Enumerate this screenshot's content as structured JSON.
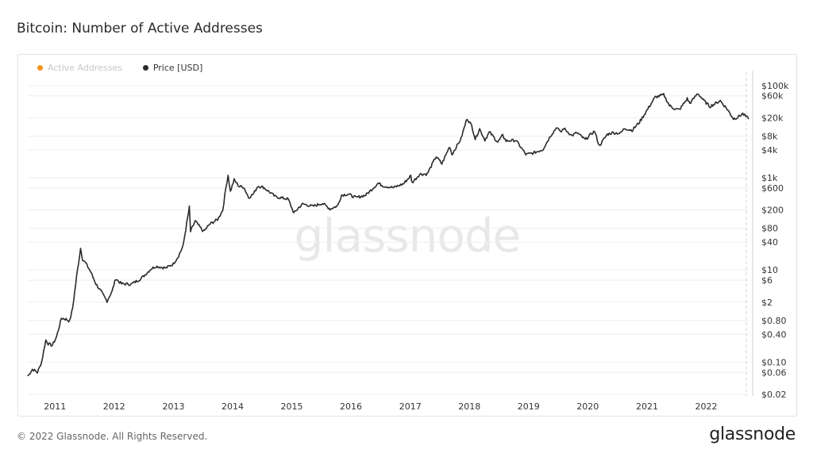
{
  "title": "Bitcoin: Number of Active Addresses",
  "footer": {
    "copyright": "© 2022 Glassnode. All Rights Reserved.",
    "logo": "glassnode"
  },
  "watermark": "glassnode",
  "colors": {
    "price_line": "#2a2a2a",
    "active_addresses": "#f7931a",
    "grid": "#eeeeee"
  },
  "legend": [
    {
      "label": "Active Addresses",
      "color": "#f7931a",
      "state": "inactive"
    },
    {
      "label": "Price [USD]",
      "color": "#2a2a2a",
      "state": "active"
    }
  ],
  "chart_data": {
    "type": "line",
    "title": "Bitcoin: Number of Active Addresses",
    "y_scale": "log",
    "ylim": [
      0.02,
      180000
    ],
    "xlim": [
      "2010-07-17",
      "2022-09-20"
    ],
    "x_ticks": [
      "2011",
      "2012",
      "2013",
      "2014",
      "2015",
      "2016",
      "2017",
      "2018",
      "2019",
      "2020",
      "2021",
      "2022"
    ],
    "y_ticks": [
      {
        "value": 100000,
        "label": "$100k"
      },
      {
        "value": 60000,
        "label": "$60k"
      },
      {
        "value": 20000,
        "label": "$20k"
      },
      {
        "value": 8000,
        "label": "$8k"
      },
      {
        "value": 4000,
        "label": "$4k"
      },
      {
        "value": 1000,
        "label": "$1k"
      },
      {
        "value": 600,
        "label": "$600"
      },
      {
        "value": 200,
        "label": "$200"
      },
      {
        "value": 80,
        "label": "$80"
      },
      {
        "value": 40,
        "label": "$40"
      },
      {
        "value": 10,
        "label": "$10"
      },
      {
        "value": 6,
        "label": "$6"
      },
      {
        "value": 2,
        "label": "$2"
      },
      {
        "value": 0.8,
        "label": "$0.80"
      },
      {
        "value": 0.4,
        "label": "$0.40"
      },
      {
        "value": 0.1,
        "label": "$0.10"
      },
      {
        "value": 0.06,
        "label": "$0.06"
      },
      {
        "value": 0.02,
        "label": "$0.02"
      }
    ],
    "grid": true,
    "legend_position": "top-left",
    "series": [
      {
        "name": "Price [USD]",
        "points": [
          [
            "2010-07-17",
            0.05
          ],
          [
            "2010-08-15",
            0.07
          ],
          [
            "2010-09-15",
            0.06
          ],
          [
            "2010-10-10",
            0.1
          ],
          [
            "2010-11-05",
            0.3
          ],
          [
            "2010-11-20",
            0.25
          ],
          [
            "2010-12-15",
            0.23
          ],
          [
            "2011-01-10",
            0.35
          ],
          [
            "2011-02-10",
            0.9
          ],
          [
            "2011-03-10",
            0.85
          ],
          [
            "2011-04-01",
            0.77
          ],
          [
            "2011-04-20",
            1.5
          ],
          [
            "2011-05-15",
            7.5
          ],
          [
            "2011-06-08",
            29.6
          ],
          [
            "2011-06-20",
            17
          ],
          [
            "2011-07-10",
            14
          ],
          [
            "2011-08-10",
            9
          ],
          [
            "2011-09-10",
            5
          ],
          [
            "2011-10-10",
            3.5
          ],
          [
            "2011-11-18",
            2.1
          ],
          [
            "2011-12-20",
            3.5
          ],
          [
            "2012-01-10",
            6.5
          ],
          [
            "2012-02-15",
            5
          ],
          [
            "2012-04-15",
            4.9
          ],
          [
            "2012-06-15",
            6.5
          ],
          [
            "2012-08-15",
            10.5
          ],
          [
            "2012-09-15",
            12
          ],
          [
            "2012-11-15",
            11
          ],
          [
            "2012-12-31",
            13.5
          ],
          [
            "2013-02-01",
            20
          ],
          [
            "2013-03-01",
            33
          ],
          [
            "2013-04-09",
            230
          ],
          [
            "2013-04-16",
            68
          ],
          [
            "2013-05-15",
            115
          ],
          [
            "2013-07-05",
            68
          ],
          [
            "2013-08-15",
            100
          ],
          [
            "2013-10-01",
            125
          ],
          [
            "2013-11-01",
            200
          ],
          [
            "2013-11-20",
            600
          ],
          [
            "2013-12-04",
            1150
          ],
          [
            "2013-12-18",
            500
          ],
          [
            "2014-01-10",
            900
          ],
          [
            "2014-02-10",
            650
          ],
          [
            "2014-03-10",
            630
          ],
          [
            "2014-04-10",
            370
          ],
          [
            "2014-05-10",
            450
          ],
          [
            "2014-06-05",
            660
          ],
          [
            "2014-07-10",
            620
          ],
          [
            "2014-08-20",
            480
          ],
          [
            "2014-09-20",
            390
          ],
          [
            "2014-10-20",
            370
          ],
          [
            "2014-12-10",
            345
          ],
          [
            "2015-01-14",
            170
          ],
          [
            "2015-02-10",
            220
          ],
          [
            "2015-03-10",
            270
          ],
          [
            "2015-05-10",
            240
          ],
          [
            "2015-07-10",
            280
          ],
          [
            "2015-08-25",
            210
          ],
          [
            "2015-10-10",
            245
          ],
          [
            "2015-11-04",
            420
          ],
          [
            "2015-12-15",
            440
          ],
          [
            "2016-02-01",
            370
          ],
          [
            "2016-04-01",
            420
          ],
          [
            "2016-06-17",
            760
          ],
          [
            "2016-07-20",
            660
          ],
          [
            "2016-09-20",
            610
          ],
          [
            "2016-11-20",
            740
          ],
          [
            "2017-01-04",
            1100
          ],
          [
            "2017-01-12",
            780
          ],
          [
            "2017-03-01",
            1200
          ],
          [
            "2017-04-15",
            1200
          ],
          [
            "2017-06-10",
            2900
          ],
          [
            "2017-07-15",
            2000
          ],
          [
            "2017-09-01",
            4800
          ],
          [
            "2017-09-15",
            3200
          ],
          [
            "2017-11-10",
            7000
          ],
          [
            "2017-12-17",
            19500
          ],
          [
            "2018-01-15",
            13500
          ],
          [
            "2018-02-06",
            6900
          ],
          [
            "2018-03-05",
            11500
          ],
          [
            "2018-04-06",
            6600
          ],
          [
            "2018-05-05",
            9800
          ],
          [
            "2018-06-25",
            5900
          ],
          [
            "2018-07-25",
            8300
          ],
          [
            "2018-08-15",
            6300
          ],
          [
            "2018-10-15",
            6500
          ],
          [
            "2018-11-20",
            4300
          ],
          [
            "2018-12-15",
            3200
          ],
          [
            "2019-02-01",
            3450
          ],
          [
            "2019-03-30",
            4100
          ],
          [
            "2019-05-15",
            8000
          ],
          [
            "2019-06-26",
            12800
          ],
          [
            "2019-07-16",
            9500
          ],
          [
            "2019-08-06",
            11800
          ],
          [
            "2019-09-25",
            8200
          ],
          [
            "2019-10-26",
            9500
          ],
          [
            "2019-12-16",
            6700
          ],
          [
            "2020-02-12",
            10300
          ],
          [
            "2020-03-12",
            4900
          ],
          [
            "2020-04-30",
            8700
          ],
          [
            "2020-06-01",
            9500
          ],
          [
            "2020-07-20",
            9200
          ],
          [
            "2020-08-15",
            11800
          ],
          [
            "2020-10-01",
            10700
          ],
          [
            "2020-11-15",
            16000
          ],
          [
            "2020-12-31",
            29000
          ],
          [
            "2021-02-20",
            56000
          ],
          [
            "2021-04-14",
            63000
          ],
          [
            "2021-05-19",
            37000
          ],
          [
            "2021-06-22",
            31000
          ],
          [
            "2021-07-20",
            30000
          ],
          [
            "2021-09-06",
            52000
          ],
          [
            "2021-09-22",
            41000
          ],
          [
            "2021-11-10",
            68000
          ],
          [
            "2021-12-15",
            48000
          ],
          [
            "2022-01-24",
            35000
          ],
          [
            "2022-03-28",
            47000
          ],
          [
            "2022-05-10",
            31000
          ],
          [
            "2022-06-18",
            19000
          ],
          [
            "2022-07-15",
            20500
          ],
          [
            "2022-08-14",
            24500
          ],
          [
            "2022-09-20",
            18800
          ]
        ]
      }
    ]
  }
}
